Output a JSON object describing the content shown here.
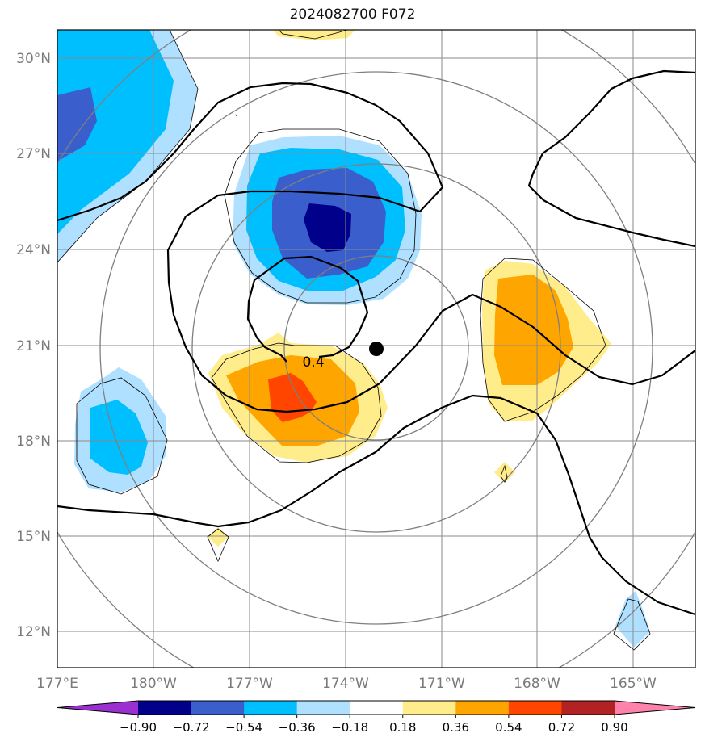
{
  "title": "2024082700 F072",
  "contour_label": "0.4",
  "lat_labels": [
    "30°N",
    "27°N",
    "24°N",
    "21°N",
    "18°N",
    "15°N",
    "12°N"
  ],
  "lon_labels": [
    "177°E",
    "180°W",
    "177°W",
    "174°W",
    "171°W",
    "168°W",
    "165°W"
  ],
  "colorbar": {
    "tick_labels": [
      "−0.90",
      "−0.72",
      "−0.54",
      "−0.36",
      "−0.18",
      "0.18",
      "0.36",
      "0.54",
      "0.72",
      "0.90"
    ],
    "colors": [
      "#9b30d0",
      "#00008b",
      "#3a5fcd",
      "#00bfff",
      "#b0e0ff",
      "#ffffff",
      "#ffec8b",
      "#ffa500",
      "#ff4500",
      "#b22222",
      "#ff82ab"
    ]
  },
  "fill_colors": {
    "light_blue": "#b0e0ff",
    "blue": "#00bfff",
    "royal_blue": "#3a5fcd",
    "navy": "#00008b",
    "light_yellow": "#ffec8b",
    "orange": "#ffa500",
    "red_orange": "#ff4500"
  }
}
